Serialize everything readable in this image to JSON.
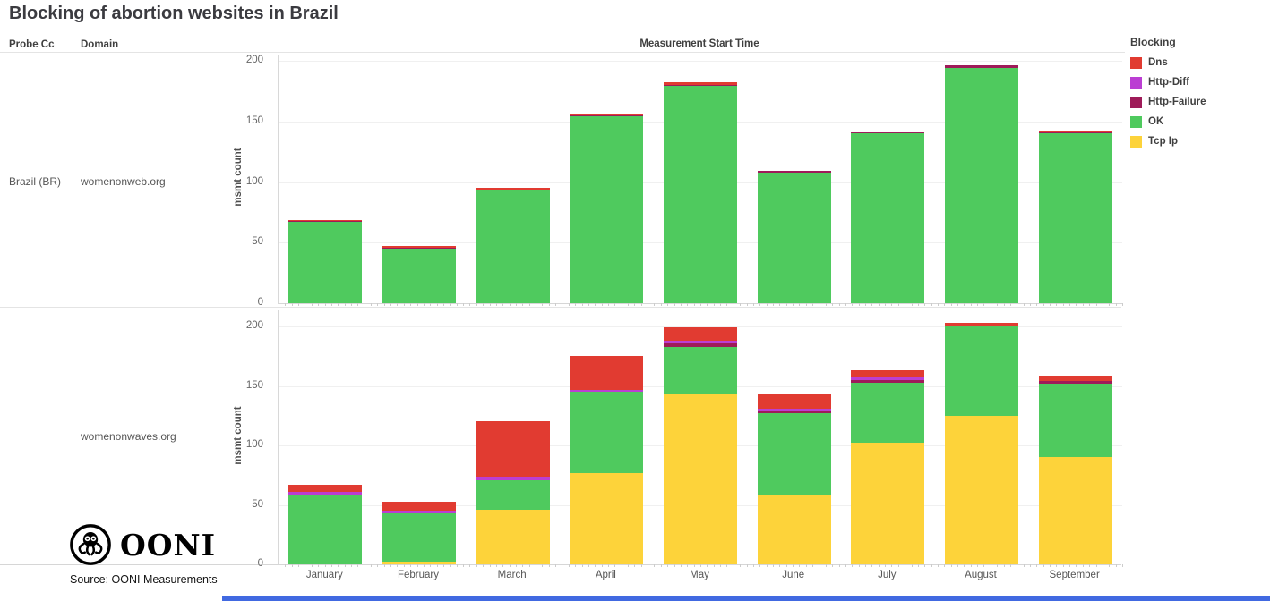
{
  "title": "Blocking of abortion websites in Brazil",
  "header": {
    "probe_cc_label": "Probe Cc",
    "domain_label": "Domain",
    "x_axis_title": "Measurement Start Time"
  },
  "legend": {
    "title": "Blocking",
    "items": [
      {
        "label": "Dns",
        "color": "#e13b31"
      },
      {
        "label": "Http-Diff",
        "color": "#bb3ed3"
      },
      {
        "label": "Http-Failure",
        "color": "#9e1b59"
      },
      {
        "label": "OK",
        "color": "#4fca5e"
      },
      {
        "label": "Tcp Ip",
        "color": "#fdd33a"
      }
    ]
  },
  "rows": [
    {
      "probe_cc": "Brazil (BR)",
      "domain": "womenonweb.org"
    },
    {
      "probe_cc": "",
      "domain": "womenonwaves.org"
    }
  ],
  "y_axis": {
    "label": "msmt count",
    "ticks": [
      200,
      150,
      100,
      50,
      0
    ]
  },
  "footer": {
    "logo_text": "OONI",
    "source": "Source: OONI Measurements"
  },
  "chart_data": [
    {
      "type": "bar",
      "stacked": true,
      "panel_label": "womenonweb.org",
      "categories": [
        "January",
        "February",
        "March",
        "April",
        "May",
        "June",
        "July",
        "August",
        "September"
      ],
      "series": [
        {
          "name": "Dns",
          "color": "#e13b31",
          "values": [
            1,
            1,
            1,
            1,
            2,
            0,
            0,
            0,
            1
          ]
        },
        {
          "name": "Http-Diff",
          "color": "#bb3ed3",
          "values": [
            0,
            0,
            0,
            0,
            0,
            0,
            0,
            0,
            0
          ]
        },
        {
          "name": "Http-Failure",
          "color": "#9e1b59",
          "values": [
            1,
            1,
            1,
            1,
            1,
            1,
            1,
            2,
            1
          ]
        },
        {
          "name": "OK",
          "color": "#4fca5e",
          "values": [
            67,
            45,
            93,
            154,
            179,
            108,
            140,
            194,
            140
          ]
        },
        {
          "name": "Tcp Ip",
          "color": "#fdd33a",
          "values": [
            0,
            0,
            0,
            0,
            0,
            0,
            0,
            0,
            0
          ]
        }
      ],
      "totals": [
        69,
        47,
        95,
        156,
        182,
        109,
        141,
        196,
        142
      ],
      "xlabel": "Measurement Start Time",
      "ylabel": "msmt count",
      "ylim": [
        0,
        200
      ],
      "grid": true,
      "legend_position": "right"
    },
    {
      "type": "bar",
      "stacked": true,
      "panel_label": "womenonwaves.org",
      "categories": [
        "January",
        "February",
        "March",
        "April",
        "May",
        "June",
        "July",
        "August",
        "September"
      ],
      "series": [
        {
          "name": "Dns",
          "color": "#e13b31",
          "values": [
            6,
            8,
            46,
            28,
            11,
            12,
            6,
            2,
            5
          ]
        },
        {
          "name": "Http-Diff",
          "color": "#bb3ed3",
          "values": [
            2,
            2,
            3,
            2,
            2,
            2,
            2,
            1,
            0
          ]
        },
        {
          "name": "Http-Failure",
          "color": "#9e1b59",
          "values": [
            0,
            0,
            0,
            0,
            3,
            2,
            2,
            0,
            2
          ]
        },
        {
          "name": "OK",
          "color": "#4fca5e",
          "values": [
            59,
            41,
            25,
            68,
            40,
            68,
            51,
            75,
            62
          ]
        },
        {
          "name": "Tcp Ip",
          "color": "#fdd33a",
          "values": [
            0,
            2,
            46,
            77,
            143,
            59,
            102,
            125,
            90
          ]
        }
      ],
      "totals": [
        67,
        53,
        120,
        175,
        199,
        143,
        163,
        203,
        159
      ],
      "xlabel": "Measurement Start Time",
      "ylabel": "msmt count",
      "ylim": [
        0,
        200
      ],
      "grid": true,
      "legend_position": "right"
    }
  ]
}
